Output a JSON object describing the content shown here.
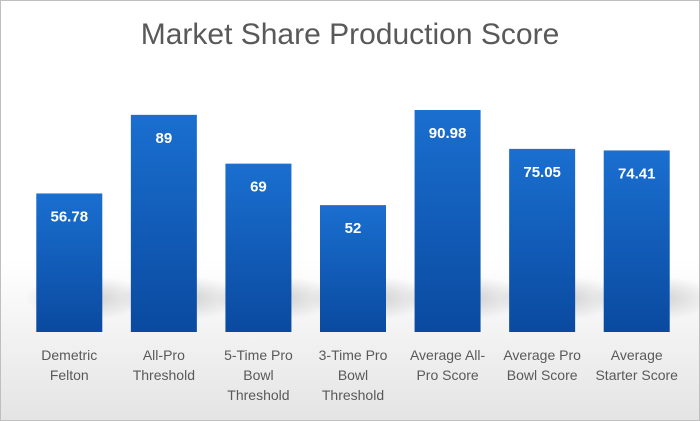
{
  "chart_data": {
    "type": "bar",
    "title": "Market Share Production Score",
    "xlabel": "",
    "ylabel": "",
    "ylim": [
      0,
      100
    ],
    "grid": false,
    "legend": "none",
    "categories": [
      "Demetric Felton",
      "All-Pro Threshold",
      "5-Time Pro Bowl Threshold",
      "3-Time Pro Bowl Threshold",
      "Average All-Pro Score",
      "Average Pro Bowl Score",
      "Average Starter Score"
    ],
    "category_lines": [
      [
        "Demetric",
        "Felton"
      ],
      [
        "All-Pro",
        "Threshold"
      ],
      [
        "5-Time Pro",
        "Bowl",
        "Threshold"
      ],
      [
        "3-Time Pro",
        "Bowl",
        "Threshold"
      ],
      [
        "Average All-",
        "Pro Score"
      ],
      [
        "Average Pro",
        "Bowl Score"
      ],
      [
        "Average",
        "Starter Score"
      ]
    ],
    "values": [
      56.78,
      89,
      69,
      52,
      90.98,
      75.05,
      74.41
    ],
    "value_labels": [
      "56.78",
      "89",
      "69",
      "52",
      "90.98",
      "75.05",
      "74.41"
    ],
    "colors": {
      "bar_top": "#1a6fd0",
      "bar_bottom": "#0a4aa0",
      "shadow": "#9a9a9a"
    }
  }
}
